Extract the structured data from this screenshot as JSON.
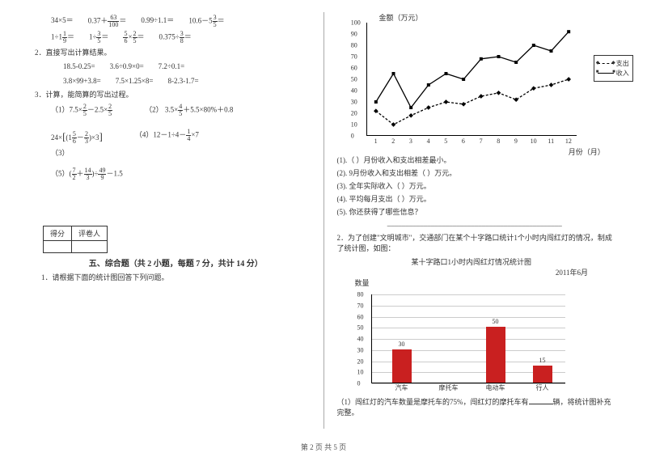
{
  "left": {
    "eq_row1": [
      "34×5＝",
      "0.37＋",
      "＝",
      "0.99÷1.1＝",
      "10.6－5",
      "＝"
    ],
    "frac_a": {
      "n": "63",
      "d": "100"
    },
    "frac_b": {
      "n": "3",
      "d": "5"
    },
    "eq_row2_a": "1÷1",
    "frac_c": {
      "n": "1",
      "d": "9"
    },
    "eq_row2_b": "＝",
    "eq_row2_c": "1÷",
    "frac_d": {
      "n": "3",
      "d": "5"
    },
    "eq_row2_d": "＝",
    "frac_e": {
      "n": "5",
      "d": "6"
    },
    "eq_row2_e": "×",
    "frac_f": {
      "n": "2",
      "d": "5"
    },
    "eq_row2_f": "＝",
    "eq_row2_g": "0.375÷",
    "frac_g": {
      "n": "3",
      "d": "8"
    },
    "eq_row2_h": "＝",
    "q2": "2．直接写出计算结果。",
    "q2_row1": [
      "18.5-0.25=",
      "3.6÷0.9×0=",
      "7.2÷0.1="
    ],
    "q2_row2": [
      "3.8×99+3.8=",
      "7.5×1.25×8=",
      "8-2.3-1.7="
    ],
    "q3": "3．计算，能简算的写出过程。",
    "q3_1a": "（1）7.5×",
    "frac_h": {
      "n": "2",
      "d": "5"
    },
    "q3_1b": "－2.5×",
    "frac_i": {
      "n": "2",
      "d": "5"
    },
    "q3_2a": "（2）",
    "q3_2b": "3.5×",
    "frac_j": {
      "n": "4",
      "d": "5"
    },
    "q3_2c": "＋5.5×80%＋0.8",
    "q3_3a": "24×",
    "frac_k": {
      "n": "5",
      "d": "6"
    },
    "frac_l": {
      "n": "2",
      "d": "3"
    },
    "q3_3b": "（3）",
    "q3_4a": "（4）12－1÷4－",
    "frac_m": {
      "n": "1",
      "d": "4"
    },
    "q3_4b": "×7",
    "q3_5a": "（5）",
    "frac_n": {
      "n": "7",
      "d": "2"
    },
    "frac_o": {
      "n": "14",
      "d": "3"
    },
    "frac_p": {
      "n": "49",
      "d": "9"
    },
    "q3_5b": "－1.5",
    "score_head1": "得分",
    "score_head2": "评卷人",
    "section5": "五、综合题（共 2 小题，每题 7 分，共计 14 分）",
    "q5_1": "1．请根据下面的统计图回答下列问题。"
  },
  "right": {
    "chart1_title": "金额（万元）",
    "chart1_xaxis": "月份（月）",
    "yticks": [
      "0",
      "10",
      "20",
      "30",
      "40",
      "50",
      "60",
      "70",
      "80",
      "90",
      "100"
    ],
    "xticks": [
      "1",
      "2",
      "3",
      "4",
      "5",
      "6",
      "7",
      "8",
      "9",
      "10",
      "11",
      "12"
    ],
    "legend_out": "支出",
    "legend_in": "收入",
    "line_income": [
      30,
      55,
      25,
      45,
      55,
      50,
      68,
      70,
      65,
      80,
      75,
      92
    ],
    "line_expense": [
      22,
      10,
      18,
      25,
      30,
      28,
      35,
      38,
      32,
      42,
      45,
      50
    ],
    "q1": "(1).（ ）月份收入和支出相差最小。",
    "q2": "(2). 9月份收入和支出相差（ ）万元。",
    "q3": "(3). 全年实际收入（ ）万元。",
    "q4": "(4). 平均每月支出（ ）万元。",
    "q5": "(5). 你还获得了哪些信息？",
    "blank_line": "________________________________________________",
    "p2": "2．为了创建\"文明城市\"，交通部门在某个十字路口统计1个小时内闯红灯的情况，制成了统计图，如图：",
    "bar_title": "某十字路口1小时内闯红灯情况统计图",
    "bar_date": "2011年6月",
    "bar_ylabel": "数量",
    "bar_yticks": [
      "0",
      "10",
      "20",
      "30",
      "40",
      "50",
      "60",
      "70",
      "80"
    ],
    "bars": [
      {
        "label": "汽车",
        "value": 30,
        "show": "30"
      },
      {
        "label": "摩托车",
        "value": 0,
        "show": ""
      },
      {
        "label": "电动车",
        "value": 50,
        "show": "50"
      },
      {
        "label": "行人",
        "value": 15,
        "show": "15"
      }
    ],
    "p2_q1a": "（1）闯红灯的汽车数量是摩托车的75%，闯红灯的摩托车有",
    "p2_q1b": "辆，将统计图补充完整。"
  },
  "footer": "第 2 页 共 5 页",
  "colors": {
    "bar": "#c92020",
    "grid": "#cccccc"
  }
}
